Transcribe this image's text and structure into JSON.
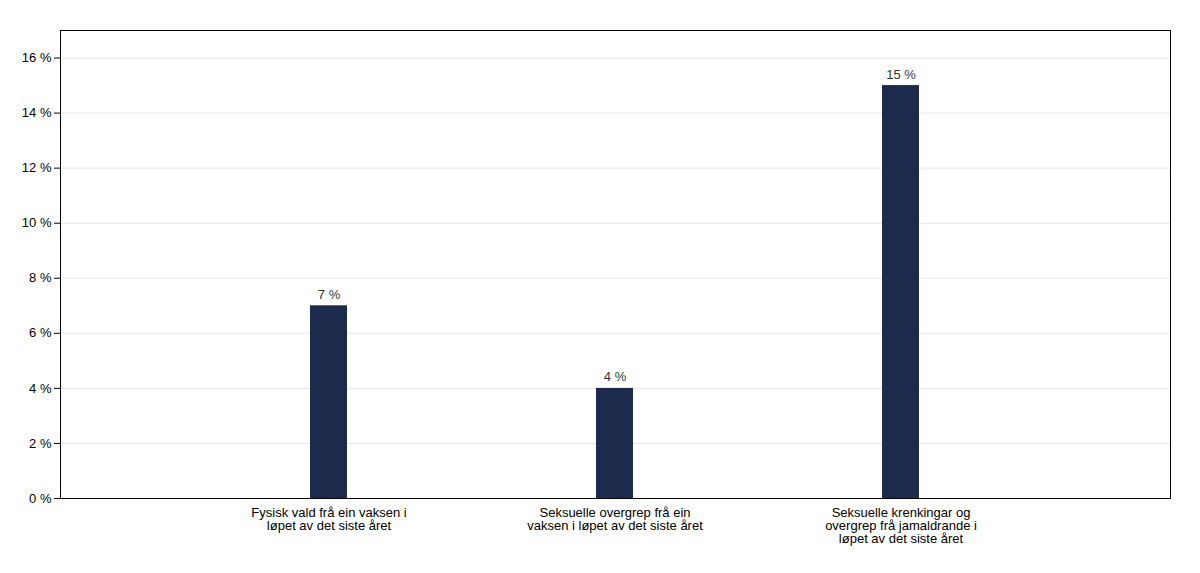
{
  "chart_data": {
    "type": "bar",
    "categories": [
      "Fysisk vald frå ein vaksen i\nløpet av det siste året",
      "Seksuelle overgrep frå ein\nvaksen i løpet av det siste året",
      "Seksuelle krenkingar og\novergrep frå jamaldrande i\nløpet av det siste året"
    ],
    "values": [
      7,
      4,
      15
    ],
    "value_labels": [
      "7 %",
      "4 %",
      "15 %"
    ],
    "data_labels": true,
    "color": "#1c2b4b",
    "ylim": [
      0,
      17
    ],
    "yticks": [
      {
        "value": 0,
        "label": "0 %"
      },
      {
        "value": 2,
        "label": "2 %"
      },
      {
        "value": 4,
        "label": "4 %"
      },
      {
        "value": 6,
        "label": "6 %"
      },
      {
        "value": 8,
        "label": "8 %"
      },
      {
        "value": 10,
        "label": "10 %"
      },
      {
        "value": 12,
        "label": "12 %"
      },
      {
        "value": 14,
        "label": "14 %"
      },
      {
        "value": 16,
        "label": "16 %"
      }
    ],
    "grid": true
  }
}
